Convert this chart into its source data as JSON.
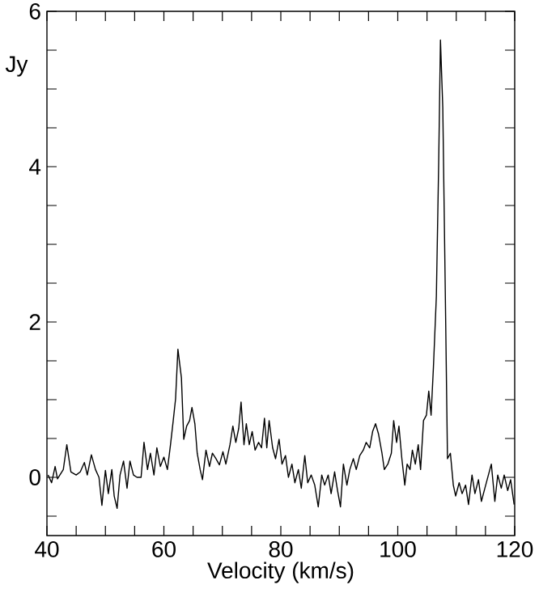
{
  "chart_data": {
    "type": "line",
    "xlabel": "Velocity (km/s)",
    "ylabel": "Jy",
    "color": "#000000",
    "xlim": [
      40,
      120
    ],
    "ylim": [
      -0.75,
      6
    ],
    "xticks": [
      40,
      {
        "value": 45,
        "label": null
      },
      {
        "value": 50,
        "label": null
      },
      {
        "value": 55,
        "label": null
      },
      60,
      {
        "value": 65,
        "label": null
      },
      {
        "value": 70,
        "label": null
      },
      {
        "value": 75,
        "label": null
      },
      80,
      {
        "value": 85,
        "label": null
      },
      {
        "value": 90,
        "label": null
      },
      {
        "value": 95,
        "label": null
      },
      100,
      {
        "value": 105,
        "label": null
      },
      {
        "value": 110,
        "label": null
      },
      {
        "value": 115,
        "label": null
      },
      120
    ],
    "yticks": [
      {
        "value": -0.5,
        "label": null
      },
      0,
      {
        "value": 0.5,
        "label": null
      },
      {
        "value": 1,
        "label": null
      },
      {
        "value": 1.5,
        "label": null
      },
      2,
      {
        "value": 2.5,
        "label": null
      },
      {
        "value": 3,
        "label": null
      },
      {
        "value": 3.5,
        "label": null
      },
      4,
      {
        "value": 4.5,
        "label": null
      },
      {
        "value": 5,
        "label": null
      },
      {
        "value": 5.5,
        "label": null
      },
      6
    ],
    "x": [
      40.2,
      40.8,
      41.4,
      41.8,
      42.8,
      43.4,
      44.1,
      45.0,
      45.7,
      46.4,
      46.9,
      47.6,
      48.3,
      48.9,
      49.4,
      50.0,
      50.5,
      51.1,
      51.5,
      52.0,
      52.5,
      53.1,
      53.7,
      54.2,
      54.8,
      55.4,
      56.1,
      56.6,
      57.2,
      57.7,
      58.3,
      58.8,
      59.4,
      60.0,
      60.6,
      61.1,
      61.6,
      62.0,
      62.4,
      63.0,
      63.4,
      63.9,
      64.4,
      64.8,
      65.3,
      65.7,
      66.2,
      66.6,
      67.2,
      67.8,
      68.3,
      68.9,
      69.5,
      70.1,
      70.6,
      71.3,
      71.8,
      72.3,
      72.8,
      73.2,
      73.7,
      74.1,
      74.6,
      75.1,
      75.6,
      76.2,
      76.7,
      77.2,
      77.6,
      78.0,
      78.6,
      79.1,
      79.7,
      80.2,
      80.8,
      81.3,
      81.9,
      82.4,
      83.0,
      83.5,
      84.1,
      84.6,
      85.2,
      85.8,
      86.4,
      87.0,
      87.5,
      88.1,
      88.6,
      89.2,
      89.7,
      90.2,
      90.7,
      91.3,
      91.8,
      92.4,
      92.9,
      93.5,
      94.1,
      94.6,
      95.2,
      95.7,
      96.2,
      96.7,
      97.3,
      97.7,
      98.3,
      98.9,
      99.3,
      99.8,
      100.2,
      100.7,
      101.2,
      101.6,
      102.1,
      102.5,
      103.0,
      103.5,
      103.9,
      104.4,
      104.9,
      105.3,
      105.7,
      106.1,
      106.6,
      107.0,
      107.3,
      107.7,
      108.2,
      108.5,
      109.0,
      109.5,
      109.9,
      110.5,
      111.0,
      111.6,
      112.1,
      112.7,
      113.2,
      113.8,
      114.3,
      114.9,
      115.5,
      116.0,
      116.6,
      117.1,
      117.7,
      118.2,
      118.8,
      119.3,
      119.9
    ],
    "values": [
      0.03,
      -0.07,
      0.14,
      -0.02,
      0.1,
      0.42,
      0.07,
      0.03,
      0.07,
      0.19,
      0.03,
      0.29,
      0.1,
      0,
      -0.36,
      0.09,
      -0.21,
      0.1,
      -0.24,
      -0.4,
      0.03,
      0.21,
      -0.14,
      0.21,
      0.03,
      0,
      0,
      0.45,
      0.1,
      0.31,
      0.03,
      0.38,
      0.14,
      0.26,
      0.1,
      0.4,
      0.73,
      1.01,
      1.65,
      1.28,
      0.49,
      0.66,
      0.73,
      0.9,
      0.69,
      0.31,
      0.1,
      -0.03,
      0.35,
      0.14,
      0.31,
      0.24,
      0.16,
      0.33,
      0.17,
      0.42,
      0.66,
      0.45,
      0.63,
      0.97,
      0.42,
      0.69,
      0.42,
      0.59,
      0.35,
      0.45,
      0.38,
      0.76,
      0.38,
      0.73,
      0.38,
      0.24,
      0.49,
      0.17,
      0.28,
      0,
      0.17,
      -0.07,
      0.1,
      -0.14,
      0.28,
      -0.07,
      0.03,
      -0.1,
      -0.38,
      0.03,
      -0.1,
      0.03,
      -0.21,
      0.07,
      -0.17,
      -0.38,
      0.17,
      -0.1,
      0.1,
      0.24,
      0.1,
      0.28,
      0.35,
      0.45,
      0.38,
      0.59,
      0.69,
      0.56,
      0.31,
      0.1,
      0.17,
      0.31,
      0.73,
      0.45,
      0.66,
      0.24,
      -0.1,
      0.17,
      0.1,
      0.35,
      0.17,
      0.42,
      0.1,
      0.73,
      0.8,
      1.11,
      0.8,
      1.42,
      2.33,
      4.06,
      5.63,
      4.76,
      1.98,
      0.24,
      0.31,
      -0.1,
      -0.24,
      -0.07,
      -0.21,
      -0.1,
      -0.35,
      0.03,
      -0.21,
      -0.03,
      -0.31,
      -0.14,
      0.03,
      0.17,
      -0.31,
      0.03,
      -0.14,
      0.03,
      -0.17,
      -0.03,
      -0.35
    ]
  }
}
